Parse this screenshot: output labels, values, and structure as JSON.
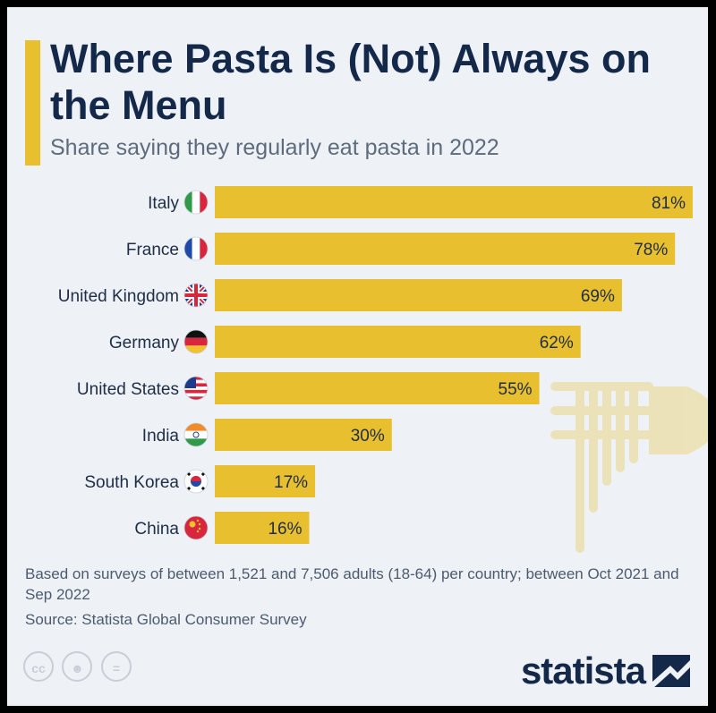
{
  "chart_data": {
    "type": "bar",
    "orientation": "horizontal",
    "title": "Where Pasta Is (Not) Always on the Menu",
    "subtitle": "Share saying they regularly eat pasta in 2022",
    "categories": [
      "Italy",
      "France",
      "United Kingdom",
      "Germany",
      "United States",
      "India",
      "South Korea",
      "China"
    ],
    "flags": [
      "italy-flag-icon",
      "france-flag-icon",
      "uk-flag-icon",
      "germany-flag-icon",
      "usa-flag-icon",
      "india-flag-icon",
      "south-korea-flag-icon",
      "china-flag-icon"
    ],
    "values": [
      81,
      78,
      69,
      62,
      55,
      30,
      17,
      16
    ],
    "value_labels": [
      "81%",
      "78%",
      "69%",
      "62%",
      "55%",
      "30%",
      "17%",
      "16%"
    ],
    "unit": "%",
    "xlim": [
      0,
      81
    ],
    "bar_color": "#e8bf2e",
    "grid": false
  },
  "footer": {
    "note": "Based on surveys of between 1,521 and 7,506 adults (18-64) per country; between Oct 2021 and Sep 2022",
    "source": "Source: Statista Global Consumer Survey"
  },
  "brand": {
    "name": "statista"
  },
  "license_icons": [
    "cc-icon",
    "person-icon",
    "equals-icon"
  ],
  "colors": {
    "accent": "#e8bf2e",
    "navy": "#14294a",
    "background": "#eef2f7"
  }
}
